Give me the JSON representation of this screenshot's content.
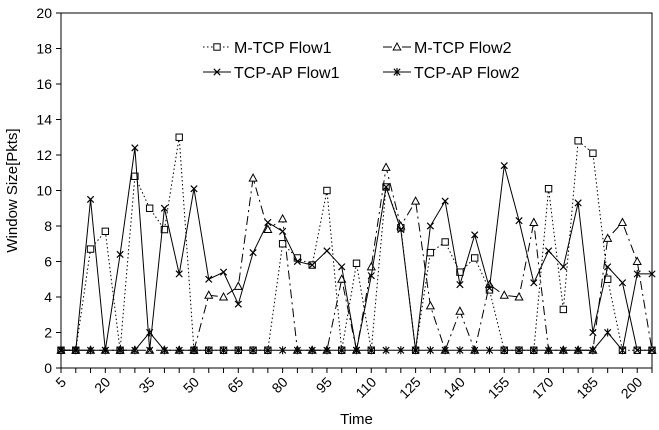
{
  "chart_data": {
    "type": "line",
    "xlabel": "Time",
    "ylabel": "Window Size[Pkts]",
    "xlim": [
      5,
      205
    ],
    "ylim": [
      0,
      20
    ],
    "y_ticks": [
      0,
      2,
      4,
      6,
      8,
      10,
      12,
      14,
      16,
      18,
      20
    ],
    "x_ticks": [
      5,
      20,
      35,
      50,
      65,
      80,
      95,
      110,
      125,
      140,
      155,
      170,
      185,
      200
    ],
    "x_tick_labels": [
      "5",
      "20",
      "35",
      "50",
      "65",
      "80",
      "95",
      "110",
      "125",
      "140",
      "155",
      "170",
      "185",
      "200"
    ],
    "grid": false,
    "legend_position": "top",
    "x": [
      5,
      10,
      15,
      20,
      25,
      30,
      35,
      40,
      45,
      50,
      55,
      60,
      65,
      70,
      75,
      80,
      85,
      90,
      95,
      100,
      105,
      110,
      115,
      120,
      125,
      130,
      135,
      140,
      145,
      150,
      155,
      160,
      165,
      170,
      175,
      180,
      185,
      190,
      195,
      200,
      205
    ],
    "series": [
      {
        "name": "M-TCP Flow1",
        "line_style": "dotted",
        "marker": "square",
        "color": "#000000",
        "values": [
          1,
          1,
          6.7,
          7.7,
          1,
          10.8,
          9.0,
          7.8,
          13.0,
          1,
          1,
          1,
          1,
          1,
          1,
          7.0,
          6.2,
          5.8,
          10.0,
          1,
          5.9,
          1,
          10.2,
          7.9,
          1,
          6.5,
          7.1,
          5.4,
          6.2,
          4.4,
          1,
          1,
          1,
          10.1,
          3.3,
          12.8,
          12.1,
          5.0,
          1,
          1,
          1
        ]
      },
      {
        "name": "M-TCP Flow2",
        "line_style": "dash-dot",
        "marker": "triangle",
        "color": "#000000",
        "values": [
          1,
          1,
          1,
          1,
          1,
          1,
          1,
          1,
          1,
          1,
          4.1,
          4.0,
          4.6,
          10.7,
          7.8,
          8.4,
          1,
          1,
          1,
          5.0,
          1,
          5.7,
          11.3,
          8.0,
          9.4,
          3.5,
          1,
          3.2,
          1,
          4.7,
          4.1,
          4.0,
          8.2,
          1,
          1,
          1,
          1,
          7.3,
          8.2,
          6.0,
          1
        ]
      },
      {
        "name": "TCP-AP Flow1",
        "line_style": "solid",
        "marker": "x",
        "color": "#000000",
        "values": [
          1,
          1,
          9.5,
          1,
          6.4,
          12.4,
          1,
          9.0,
          5.3,
          10.1,
          5.0,
          5.4,
          3.6,
          6.5,
          8.2,
          7.7,
          6.0,
          5.8,
          6.6,
          5.7,
          1,
          5.2,
          10.2,
          7.8,
          1,
          8.0,
          9.4,
          4.7,
          7.5,
          4.5,
          11.4,
          8.3,
          4.8,
          6.6,
          5.7,
          9.3,
          2.0,
          5.7,
          4.8,
          1,
          1
        ]
      },
      {
        "name": "TCP-AP Flow2",
        "line_style": "solid",
        "marker": "asterisk",
        "color": "#000000",
        "values": [
          1,
          1,
          1,
          1,
          1,
          1,
          2.0,
          1,
          1,
          1,
          1,
          1,
          1,
          1,
          1,
          1,
          1,
          1,
          1,
          1,
          1,
          1,
          1,
          1,
          1,
          1,
          1,
          1,
          1,
          1,
          1,
          1,
          1,
          1,
          1,
          1,
          1,
          2.0,
          1,
          5.3,
          5.3
        ]
      }
    ]
  }
}
